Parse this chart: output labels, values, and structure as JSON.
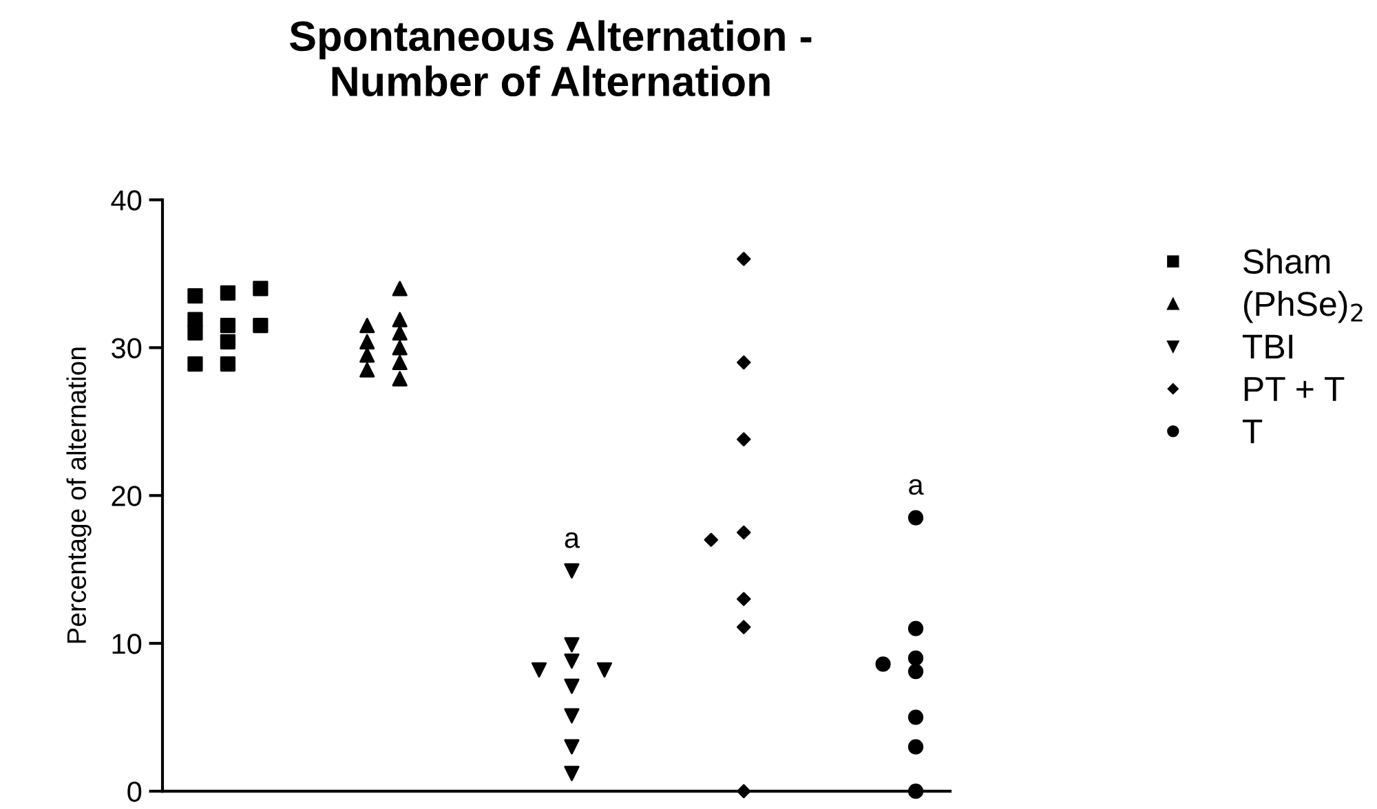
{
  "chart_data": {
    "type": "scatter",
    "title": "Spontaneous Alternation -\nNumber of Alternation",
    "ylabel": "Percentage of alternation",
    "categories": [
      null,
      null,
      null,
      null,
      null
    ],
    "ylim": [
      0,
      40
    ],
    "yticks": [
      0,
      10,
      20,
      30,
      40
    ],
    "grid": false,
    "legend": "right",
    "series": [
      {
        "name": "Sham",
        "color": "#000000",
        "marker": "square",
        "values": [
          33.7,
          null,
          null,
          null,
          null
        ]
      },
      {
        "color": "#000000",
        "marker": "square",
        "values": [
          33.5,
          null,
          null,
          null,
          null
        ]
      },
      {
        "color": "#000000",
        "marker": "square",
        "values": [
          34.0,
          null,
          null,
          null,
          null
        ]
      },
      {
        "color": "#000000",
        "marker": "square",
        "values": [
          31.5,
          null,
          null,
          null,
          null
        ]
      },
      {
        "color": "#000000",
        "marker": "square",
        "values": [
          31.0,
          null,
          null,
          null,
          null
        ]
      },
      {
        "color": "#000000",
        "marker": "square",
        "values": [
          31.9,
          null,
          null,
          null,
          null
        ]
      },
      {
        "color": "#000000",
        "marker": "square",
        "values": [
          31.5,
          null,
          null,
          null,
          null
        ]
      },
      {
        "color": "#000000",
        "marker": "square",
        "values": [
          30.4,
          null,
          null,
          null,
          null
        ]
      },
      {
        "color": "#000000",
        "marker": "square",
        "values": [
          28.9,
          null,
          null,
          null,
          null
        ]
      },
      {
        "color": "#000000",
        "marker": "square",
        "values": [
          28.9,
          null,
          null,
          null,
          null
        ]
      },
      {
        "name": "(PhSe)$_{2}$",
        "color": "#000000",
        "marker": "triangle",
        "values": [
          null,
          34.0,
          null,
          null,
          null
        ]
      },
      {
        "color": "#000000",
        "marker": "triangle",
        "values": [
          null,
          31.9,
          null,
          null,
          null
        ]
      },
      {
        "color": "#000000",
        "marker": "triangle",
        "values": [
          null,
          31.0,
          null,
          null,
          null
        ]
      },
      {
        "color": "#000000",
        "marker": "triangle",
        "values": [
          null,
          31.5,
          null,
          null,
          null
        ]
      },
      {
        "color": "#000000",
        "marker": "triangle",
        "values": [
          null,
          30.4,
          null,
          null,
          null
        ]
      },
      {
        "color": "#000000",
        "marker": "triangle",
        "values": [
          null,
          30.0,
          null,
          null,
          null
        ]
      },
      {
        "color": "#000000",
        "marker": "triangle",
        "values": [
          null,
          29.5,
          null,
          null,
          null
        ]
      },
      {
        "color": "#000000",
        "marker": "triangle",
        "values": [
          null,
          29.0,
          null,
          null,
          null
        ]
      },
      {
        "color": "#000000",
        "marker": "triangle",
        "values": [
          null,
          28.5,
          null,
          null,
          null
        ]
      },
      {
        "color": "#000000",
        "marker": "triangle",
        "values": [
          null,
          27.9,
          null,
          null,
          null
        ]
      },
      {
        "name": "TBI",
        "color": "#000000",
        "marker": "triangle_down",
        "values": [
          null,
          null,
          14.9,
          null,
          null
        ],
        "value_labels": [
          null,
          null,
          "a",
          null,
          null
        ]
      },
      {
        "color": "#000000",
        "marker": "triangle_down",
        "values": [
          null,
          null,
          9.9,
          null,
          null
        ]
      },
      {
        "color": "#000000",
        "marker": "triangle_down",
        "values": [
          null,
          null,
          8.8,
          null,
          null
        ]
      },
      {
        "color": "#000000",
        "marker": "triangle_down",
        "values": [
          null,
          null,
          8.2,
          null,
          null
        ]
      },
      {
        "color": "#000000",
        "marker": "triangle_down",
        "values": [
          null,
          null,
          8.2,
          null,
          null
        ]
      },
      {
        "color": "#000000",
        "marker": "triangle_down",
        "values": [
          null,
          null,
          7.1,
          null,
          null
        ]
      },
      {
        "color": "#000000",
        "marker": "triangle_down",
        "values": [
          null,
          null,
          5.1,
          null,
          null
        ]
      },
      {
        "color": "#000000",
        "marker": "triangle_down",
        "values": [
          null,
          null,
          3.0,
          null,
          null
        ]
      },
      {
        "color": "#000000",
        "marker": "triangle_down",
        "values": [
          null,
          null,
          1.2,
          null,
          null
        ]
      },
      {
        "name": "PT + T",
        "color": "#000000",
        "marker": "diamond",
        "values": [
          null,
          null,
          null,
          36.0,
          null
        ]
      },
      {
        "color": "#000000",
        "marker": "diamond",
        "values": [
          null,
          null,
          null,
          29.0,
          null
        ]
      },
      {
        "color": "#000000",
        "marker": "diamond",
        "values": [
          null,
          null,
          null,
          23.8,
          null
        ]
      },
      {
        "color": "#000000",
        "marker": "diamond",
        "values": [
          null,
          null,
          null,
          17.5,
          null
        ]
      },
      {
        "color": "#000000",
        "marker": "diamond",
        "values": [
          null,
          null,
          null,
          17.0,
          null
        ]
      },
      {
        "color": "#000000",
        "marker": "diamond",
        "values": [
          null,
          null,
          null,
          13.0,
          null
        ]
      },
      {
        "color": "#000000",
        "marker": "diamond",
        "values": [
          null,
          null,
          null,
          11.1,
          null
        ]
      },
      {
        "color": "#000000",
        "marker": "diamond",
        "values": [
          null,
          null,
          null,
          0,
          null
        ]
      },
      {
        "name": "T",
        "color": "#000000",
        "marker": "circle",
        "values": [
          null,
          null,
          null,
          null,
          18.5
        ],
        "value_labels": [
          null,
          null,
          null,
          null,
          "a"
        ]
      },
      {
        "color": "#000000",
        "marker": "circle",
        "values": [
          null,
          null,
          null,
          null,
          11.0
        ]
      },
      {
        "color": "#000000",
        "marker": "circle",
        "values": [
          null,
          null,
          null,
          null,
          9.0
        ]
      },
      {
        "color": "#000000",
        "marker": "circle",
        "values": [
          null,
          null,
          null,
          null,
          8.6
        ]
      },
      {
        "color": "#000000",
        "marker": "circle",
        "values": [
          null,
          null,
          null,
          null,
          8.1
        ]
      },
      {
        "color": "#000000",
        "marker": "circle",
        "values": [
          null,
          null,
          null,
          null,
          5.0
        ]
      },
      {
        "color": "#000000",
        "marker": "circle",
        "values": [
          null,
          null,
          null,
          null,
          3.0
        ]
      },
      {
        "color": "#000000",
        "marker": "circle",
        "values": [
          null,
          null,
          null,
          null,
          0
        ]
      }
    ]
  }
}
